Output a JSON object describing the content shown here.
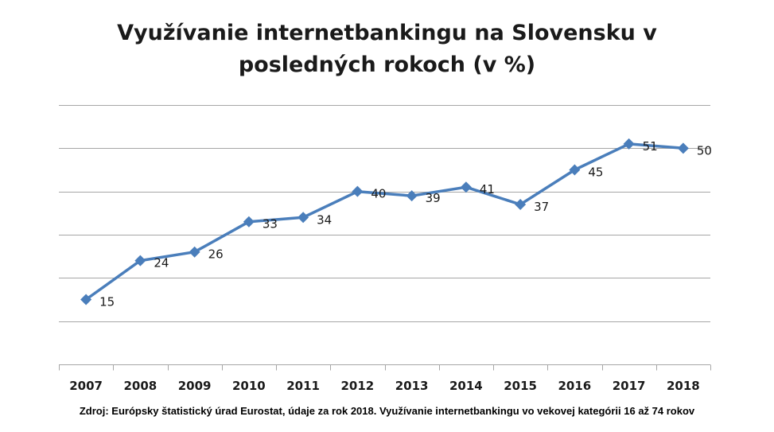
{
  "title_line1": "Využívanie internetbankingu na Slovensku v",
  "title_line2": "posledných rokoch (v %)",
  "source_note": "Zdroj: Európsky štatistický úrad Eurostat, údaje za rok 2018. Využívanie internetbankingu vo vekovej kategórii 16 až 74 rokov",
  "colors": {
    "series": "#4a7ebb",
    "grid": "#a6a6a6",
    "axis": "#a6a6a6",
    "text": "#1a1a1a"
  },
  "chart_data": {
    "type": "line",
    "title": "Využívanie internetbankingu na Slovensku v posledných rokoch (v %)",
    "categories": [
      "2007",
      "2008",
      "2009",
      "2010",
      "2011",
      "2012",
      "2013",
      "2014",
      "2015",
      "2016",
      "2017",
      "2018"
    ],
    "values": [
      15,
      24,
      26,
      33,
      34,
      40,
      39,
      41,
      37,
      45,
      51,
      50
    ],
    "data_labels": [
      "15",
      "24",
      "26",
      "33",
      "34",
      "40",
      "39",
      "41",
      "37",
      "45",
      "51",
      "50"
    ],
    "ylim": [
      0,
      60
    ],
    "y_gridlines": [
      10,
      20,
      30,
      40,
      50,
      60
    ],
    "y_tick_labels_shown": false,
    "grid": true,
    "legend": "none",
    "marker": "diamond"
  }
}
